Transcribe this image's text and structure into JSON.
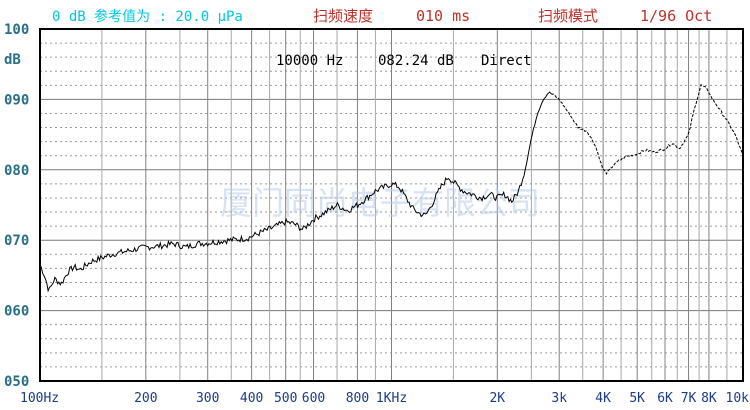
{
  "header": {
    "reference": "0 dB 参考值为 : 20.0 μPa",
    "sweep_speed_label": "扫频速度",
    "sweep_speed_value": "010 ms",
    "sweep_mode_label": "扫频模式",
    "sweep_mode_value": "1/96 Oct"
  },
  "readout": {
    "frequency": "10000 Hz",
    "level": "082.24 dB",
    "mode": "Direct"
  },
  "watermark": "厦门同尚电子有限公司",
  "colors": {
    "curve": "#000000",
    "grid": "#808080",
    "frame": "#000000",
    "header_cyan": "#00c8e0",
    "header_red": "#c0302a"
  },
  "chart_data": {
    "type": "line",
    "title": "",
    "xlabel": "",
    "ylabel": "dB",
    "x_scale": "log",
    "xlim": [
      100,
      10000
    ],
    "ylim": [
      50,
      100
    ],
    "grid": true,
    "y_ticks": [
      {
        "value": 100,
        "label": "100"
      },
      {
        "value": 90,
        "label": "090"
      },
      {
        "value": 80,
        "label": "080"
      },
      {
        "value": 70,
        "label": "070"
      },
      {
        "value": 60,
        "label": "060"
      },
      {
        "value": 50,
        "label": "050"
      }
    ],
    "x_ticks": [
      {
        "value": 100,
        "label": "100Hz"
      },
      {
        "value": 200,
        "label": "200"
      },
      {
        "value": 300,
        "label": "300"
      },
      {
        "value": 400,
        "label": "400"
      },
      {
        "value": 500,
        "label": "500"
      },
      {
        "value": 600,
        "label": "600"
      },
      {
        "value": 800,
        "label": "800"
      },
      {
        "value": 1000,
        "label": "1KHz"
      },
      {
        "value": 2000,
        "label": "2K"
      },
      {
        "value": 3000,
        "label": "3k"
      },
      {
        "value": 4000,
        "label": "4K"
      },
      {
        "value": 5000,
        "label": "5K"
      },
      {
        "value": 6000,
        "label": "6K"
      },
      {
        "value": 7000,
        "label": "7K"
      },
      {
        "value": 8000,
        "label": "8K"
      },
      {
        "value": 10000,
        "label": "10k"
      }
    ],
    "x_minor_grid": [
      150,
      250,
      350,
      450,
      550,
      700,
      900,
      1500,
      2500,
      3500,
      4500,
      5500,
      6500,
      7500,
      9000
    ],
    "series": [
      {
        "points": [
          [
            100,
            66.5
          ],
          [
            103,
            65.0
          ],
          [
            106,
            62.8
          ],
          [
            110,
            64.5
          ],
          [
            115,
            63.8
          ],
          [
            120,
            65.5
          ],
          [
            125,
            66.2
          ],
          [
            130,
            65.8
          ],
          [
            140,
            67.0
          ],
          [
            150,
            67.5
          ],
          [
            160,
            68.0
          ],
          [
            175,
            68.4
          ],
          [
            190,
            68.8
          ],
          [
            200,
            69.0
          ],
          [
            220,
            69.2
          ],
          [
            240,
            69.5
          ],
          [
            260,
            69.0
          ],
          [
            280,
            69.5
          ],
          [
            300,
            69.6
          ],
          [
            330,
            69.9
          ],
          [
            360,
            70.1
          ],
          [
            390,
            70.3
          ],
          [
            420,
            71.0
          ],
          [
            460,
            71.8
          ],
          [
            500,
            72.6
          ],
          [
            530,
            72.3
          ],
          [
            560,
            71.5
          ],
          [
            600,
            73.0
          ],
          [
            650,
            74.0
          ],
          [
            700,
            75.0
          ],
          [
            750,
            74.2
          ],
          [
            800,
            75.0
          ],
          [
            850,
            76.0
          ],
          [
            900,
            77.0
          ],
          [
            950,
            77.5
          ],
          [
            1000,
            78.0
          ],
          [
            1050,
            77.6
          ],
          [
            1100,
            76.0
          ],
          [
            1150,
            74.5
          ],
          [
            1200,
            73.8
          ],
          [
            1250,
            73.5
          ],
          [
            1300,
            75.0
          ],
          [
            1380,
            77.5
          ],
          [
            1450,
            79.0
          ],
          [
            1520,
            78.0
          ],
          [
            1600,
            77.0
          ],
          [
            1700,
            76.5
          ],
          [
            1800,
            76.0
          ],
          [
            1900,
            76.5
          ],
          [
            2000,
            76.0
          ],
          [
            2100,
            76.5
          ],
          [
            2200,
            75.5
          ],
          [
            2300,
            77.0
          ],
          [
            2400,
            80.0
          ],
          [
            2500,
            84.5
          ],
          [
            2600,
            88.0
          ],
          [
            2700,
            90.0
          ],
          [
            2800,
            91.0
          ],
          [
            2900,
            90.6
          ],
          [
            3000,
            90.0
          ],
          [
            3200,
            88.0
          ],
          [
            3400,
            86.0
          ],
          [
            3600,
            85.5
          ],
          [
            3800,
            83.5
          ],
          [
            4000,
            80.0
          ],
          [
            4100,
            79.5
          ],
          [
            4300,
            80.8
          ],
          [
            4600,
            81.8
          ],
          [
            5000,
            82.3
          ],
          [
            5300,
            82.8
          ],
          [
            5600,
            82.5
          ],
          [
            6000,
            83.0
          ],
          [
            6300,
            83.8
          ],
          [
            6600,
            83.0
          ],
          [
            7000,
            85.0
          ],
          [
            7300,
            89.0
          ],
          [
            7600,
            92.0
          ],
          [
            7900,
            91.5
          ],
          [
            8200,
            90.0
          ],
          [
            8600,
            88.5
          ],
          [
            9000,
            87.0
          ],
          [
            9500,
            85.0
          ],
          [
            10000,
            82.0
          ]
        ]
      }
    ]
  }
}
